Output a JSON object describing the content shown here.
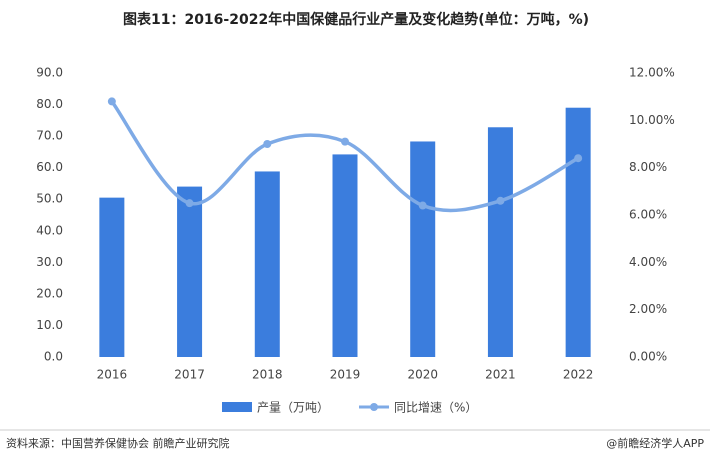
{
  "chart_data": {
    "type": "bar",
    "title": "图表11：2016-2022年中国保健品行业产量及变化趋势(单位：万吨，%)",
    "categories": [
      "2016",
      "2017",
      "2018",
      "2019",
      "2020",
      "2021",
      "2022"
    ],
    "series": [
      {
        "name": "产量（万吨）",
        "type": "bar",
        "color": "#3b7ddd",
        "values": [
          50.5,
          54.0,
          58.8,
          64.2,
          68.3,
          72.8,
          79.0
        ]
      },
      {
        "name": "同比增速（%）",
        "type": "line",
        "axis": "y2",
        "color": "#7eaae6",
        "values": [
          10.8,
          6.5,
          9.0,
          9.1,
          6.4,
          6.6,
          8.4
        ]
      }
    ],
    "ylim": [
      0,
      90
    ],
    "yticks": [
      {
        "value": 0,
        "label": "0.0"
      },
      {
        "value": 10,
        "label": "10.0"
      },
      {
        "value": 20,
        "label": "20.0"
      },
      {
        "value": 30,
        "label": "30.0"
      },
      {
        "value": 40,
        "label": "40.0"
      },
      {
        "value": 50,
        "label": "50.0"
      },
      {
        "value": 60,
        "label": "60.0"
      },
      {
        "value": 70,
        "label": "70.0"
      },
      {
        "value": 80,
        "label": "80.0"
      },
      {
        "value": 90,
        "label": "90.0"
      }
    ],
    "y2lim": [
      0,
      12
    ],
    "y2ticks": [
      {
        "value": 0,
        "label": "0.00%"
      },
      {
        "value": 2,
        "label": "2.00%"
      },
      {
        "value": 4,
        "label": "4.00%"
      },
      {
        "value": 6,
        "label": "6.00%"
      },
      {
        "value": 8,
        "label": "8.00%"
      },
      {
        "value": 10,
        "label": "10.00%"
      },
      {
        "value": 12,
        "label": "12.00%"
      }
    ],
    "grid": false,
    "legend": "bottom"
  },
  "footer": {
    "source": "资料来源：中国营养保健协会 前瞻产业研究院",
    "credit": "@前瞻经济学人APP"
  }
}
